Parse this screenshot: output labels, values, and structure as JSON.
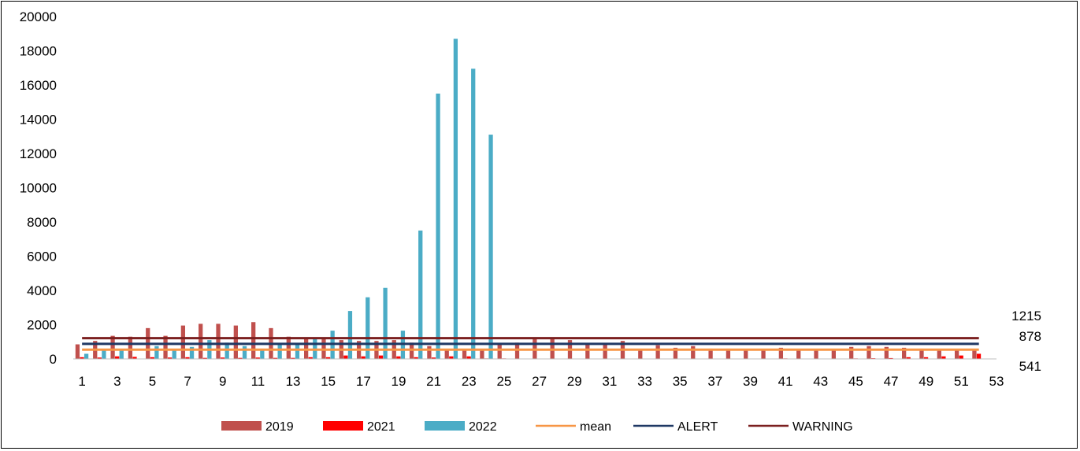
{
  "chart_data": {
    "type": "bar",
    "title": "",
    "xlabel": "",
    "ylabel": "",
    "ylim": [
      0,
      20000
    ],
    "yticks": [
      "0",
      "2000",
      "4000",
      "6000",
      "8000",
      "10000",
      "12000",
      "14000",
      "16000",
      "18000",
      "20000"
    ],
    "xticks": [
      "1",
      "3",
      "5",
      "7",
      "9",
      "11",
      "13",
      "15",
      "17",
      "19",
      "21",
      "23",
      "25",
      "27",
      "29",
      "31",
      "33",
      "35",
      "37",
      "39",
      "41",
      "43",
      "45",
      "47",
      "49",
      "51",
      "53"
    ],
    "categories": [
      1,
      2,
      3,
      4,
      5,
      6,
      7,
      8,
      9,
      10,
      11,
      12,
      13,
      14,
      15,
      16,
      17,
      18,
      19,
      20,
      21,
      22,
      23,
      24,
      25,
      26,
      27,
      28,
      29,
      30,
      31,
      32,
      33,
      34,
      35,
      36,
      37,
      38,
      39,
      40,
      41,
      42,
      43,
      44,
      45,
      46,
      47,
      48,
      49,
      50,
      51,
      52,
      53
    ],
    "series": [
      {
        "name": "2019",
        "kind": "bar",
        "color": "#c0504d",
        "values": [
          850,
          1050,
          1350,
          1300,
          1800,
          1350,
          1950,
          2050,
          2050,
          1950,
          2150,
          1800,
          1300,
          1250,
          1200,
          1100,
          1050,
          1050,
          1100,
          950,
          750,
          550,
          550,
          500,
          850,
          950,
          1150,
          1150,
          1100,
          900,
          850,
          1050,
          550,
          800,
          650,
          750,
          600,
          600,
          550,
          550,
          650,
          550,
          550,
          550,
          700,
          750,
          700,
          650,
          600,
          550,
          500,
          500,
          null
        ]
      },
      {
        "name": "2021",
        "kind": "bar",
        "color": "#ff0000",
        "values": [
          100,
          80,
          150,
          120,
          100,
          80,
          100,
          60,
          80,
          60,
          80,
          60,
          60,
          100,
          100,
          200,
          150,
          200,
          150,
          100,
          80,
          150,
          150,
          30,
          30,
          20,
          20,
          20,
          20,
          20,
          20,
          20,
          20,
          20,
          20,
          20,
          20,
          20,
          20,
          20,
          30,
          20,
          20,
          20,
          30,
          40,
          50,
          100,
          100,
          150,
          200,
          300,
          null
        ]
      },
      {
        "name": "2022",
        "kind": "bar",
        "color": "#4bacc6",
        "values": [
          300,
          500,
          500,
          null,
          750,
          550,
          700,
          1100,
          950,
          750,
          600,
          900,
          900,
          1250,
          1650,
          2800,
          3600,
          4150,
          1650,
          7500,
          15500,
          18700,
          16950,
          13100,
          null,
          null,
          null,
          null,
          null,
          null,
          null,
          null,
          null,
          null,
          null,
          null,
          null,
          null,
          null,
          null,
          null,
          null,
          null,
          null,
          null,
          null,
          null,
          null,
          null,
          null,
          null,
          null,
          null
        ]
      },
      {
        "name": "mean",
        "kind": "line",
        "color": "#f79646",
        "value": 541
      },
      {
        "name": "ALERT",
        "kind": "line",
        "color": "#1f3864",
        "value": 878
      },
      {
        "name": "WARNING",
        "kind": "line",
        "color": "#7b2020",
        "value": 1215
      }
    ],
    "ref_labels": [
      "1215",
      "878",
      "541"
    ],
    "legend_position": "bottom",
    "grid": false
  }
}
